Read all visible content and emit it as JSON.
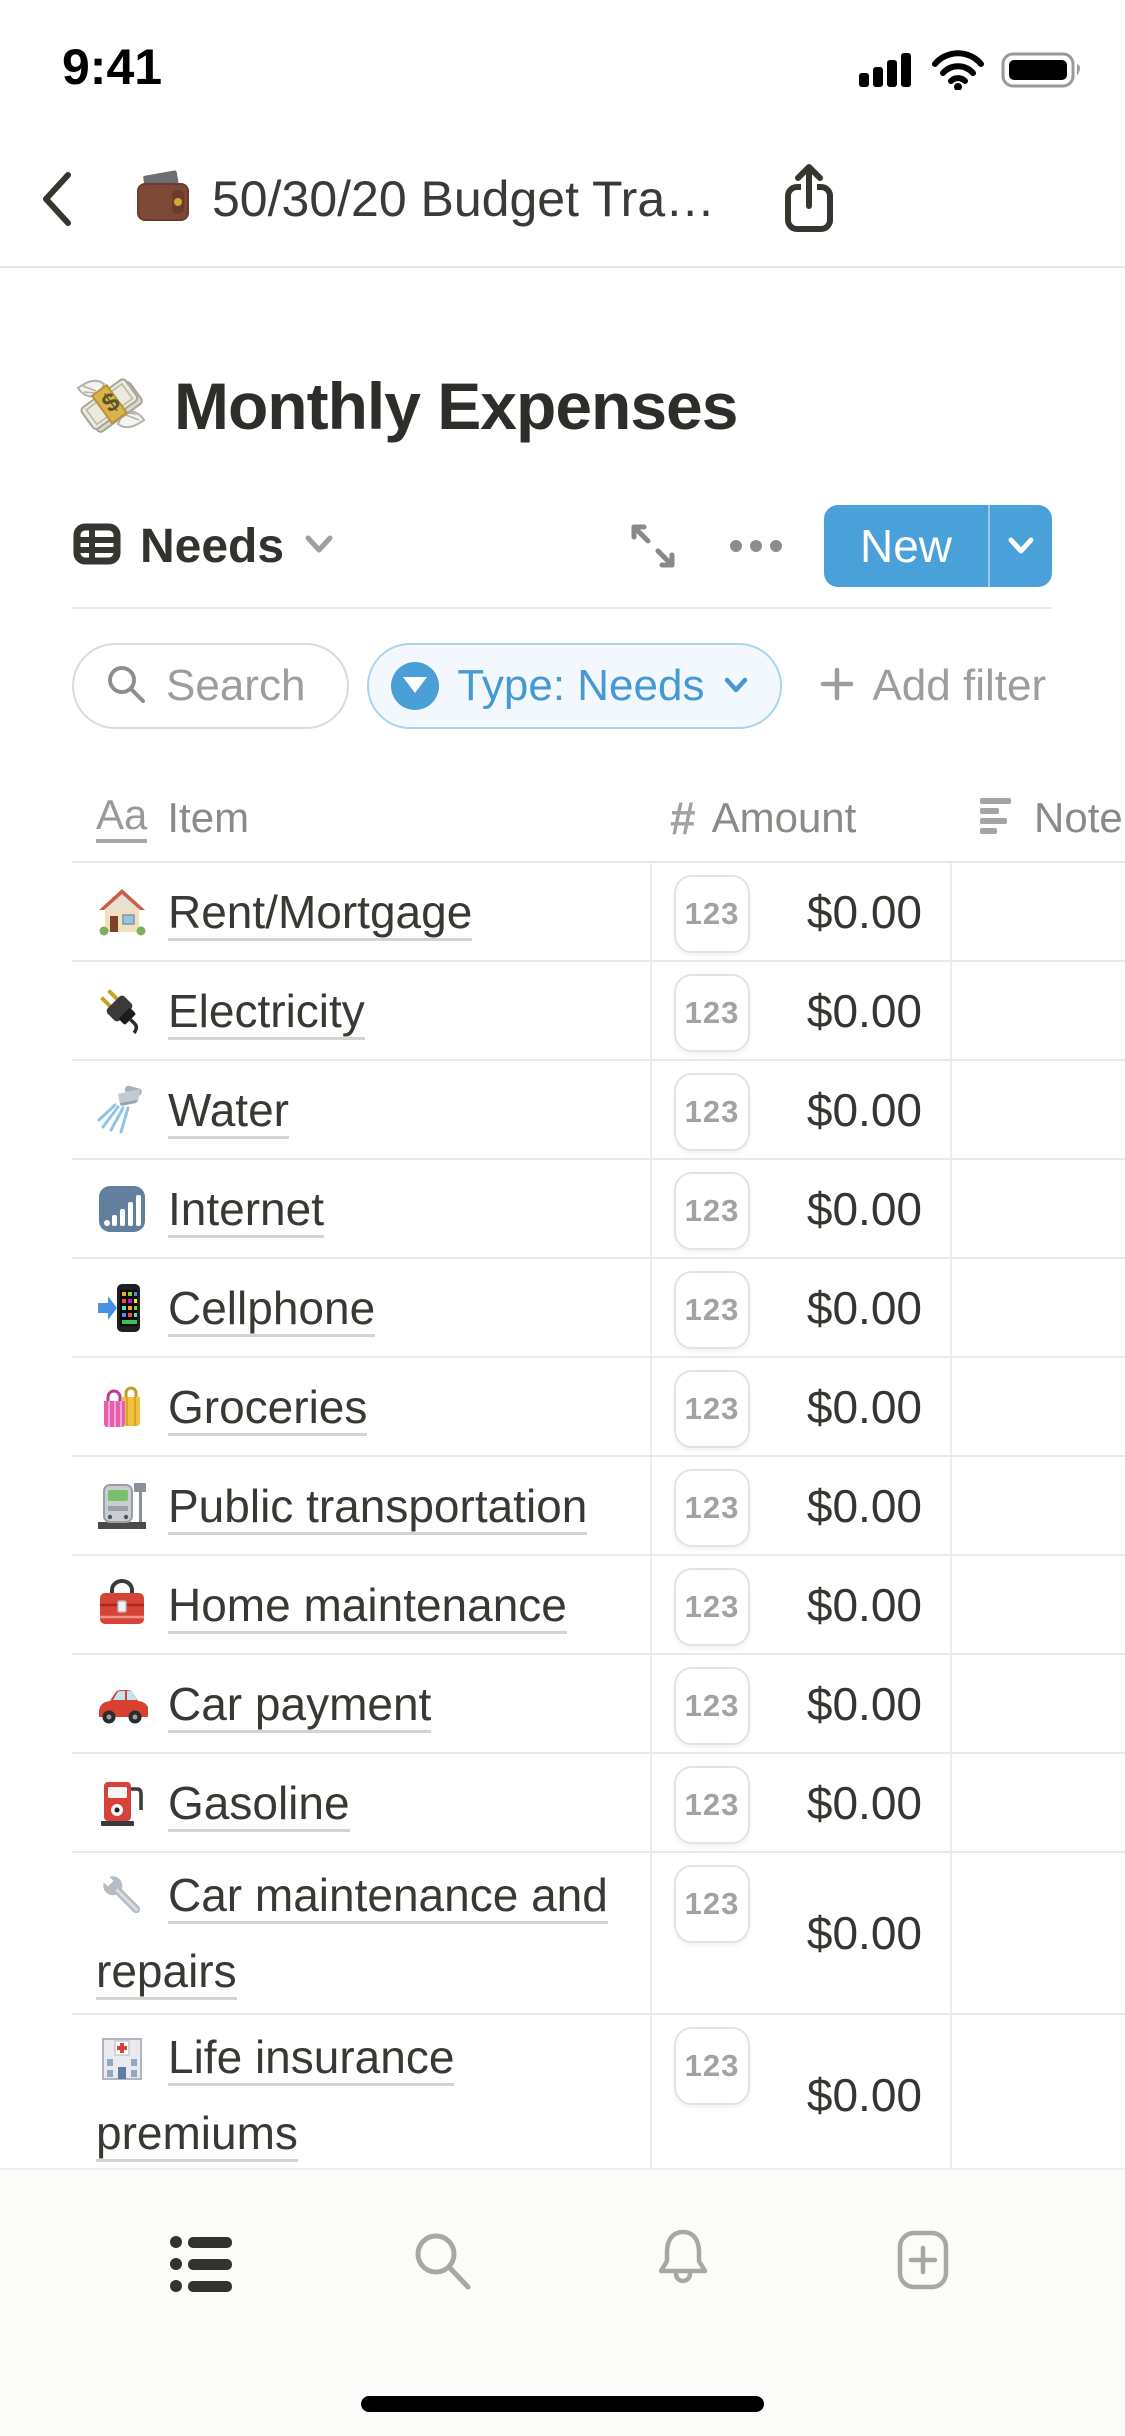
{
  "status_bar": {
    "time": "9:41"
  },
  "nav": {
    "title": "50/30/20 Budget Tra…"
  },
  "page": {
    "icon": "money-with-wings-icon",
    "title": "Monthly Expenses"
  },
  "view_bar": {
    "view_name": "Needs",
    "new_button": "New"
  },
  "filter_bar": {
    "search_placeholder": "Search",
    "filter_chip_label": "Type: Needs",
    "add_filter_label": "Add filter"
  },
  "table": {
    "columns": [
      {
        "type_glyph": "Aa",
        "label": "Item"
      },
      {
        "type_glyph": "#",
        "label": "Amount"
      },
      {
        "type_glyph": "note-lines",
        "label": "Note"
      }
    ],
    "number_badge": "123",
    "rows": [
      {
        "icon": "house-icon",
        "item": "Rent/Mortgage",
        "amount": "$0.00",
        "note": ""
      },
      {
        "icon": "electric-plug-icon",
        "item": "Electricity",
        "amount": "$0.00",
        "note": ""
      },
      {
        "icon": "shower-icon",
        "item": "Water",
        "amount": "$0.00",
        "note": ""
      },
      {
        "icon": "signal-bars-icon",
        "item": "Internet",
        "amount": "$0.00",
        "note": ""
      },
      {
        "icon": "phone-arrow-icon",
        "item": "Cellphone",
        "amount": "$0.00",
        "note": ""
      },
      {
        "icon": "shopping-bags-icon",
        "item": "Groceries",
        "amount": "$0.00",
        "note": ""
      },
      {
        "icon": "train-station-icon",
        "item": "Public transportation",
        "amount": "$0.00",
        "note": ""
      },
      {
        "icon": "toolbox-icon",
        "item": "Home maintenance",
        "amount": "$0.00",
        "note": ""
      },
      {
        "icon": "car-icon",
        "item": "Car payment",
        "amount": "$0.00",
        "note": ""
      },
      {
        "icon": "fuel-pump-icon",
        "item": "Gasoline",
        "amount": "$0.00",
        "note": ""
      },
      {
        "icon": "wrench-icon",
        "item": "Car maintenance and repairs",
        "amount": "$0.00",
        "note": ""
      },
      {
        "icon": "hospital-icon",
        "item": "Life insurance premiums",
        "amount": "$0.00",
        "note": ""
      }
    ]
  },
  "colors": {
    "accent_blue": "#4a9fd6",
    "filter_chip_bg": "#f2f8fd",
    "filter_chip_border": "#abd4ee",
    "text_dark": "#37352f",
    "text_gray": "#9e9d9a",
    "row_border": "#e9e9e7",
    "title_underline": "#d5d4d0"
  }
}
